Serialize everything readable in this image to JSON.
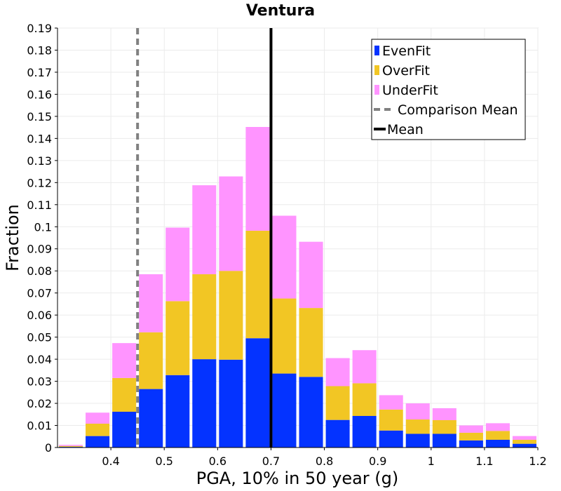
{
  "chart_data": {
    "type": "bar",
    "stacked": true,
    "title": "Ventura",
    "xlabel": "PGA, 10% in 50 year (g)",
    "ylabel": "Fraction",
    "xlim": [
      0.3,
      1.2
    ],
    "ylim": [
      0,
      0.19
    ],
    "bin_width": 0.05,
    "x": [
      0.325,
      0.375,
      0.425,
      0.475,
      0.525,
      0.575,
      0.625,
      0.675,
      0.725,
      0.775,
      0.825,
      0.875,
      0.925,
      0.975,
      1.025,
      1.075,
      1.125,
      1.175
    ],
    "series": [
      {
        "name": "EvenFit",
        "color": "#0433ff",
        "values": [
          0.0003,
          0.0052,
          0.0162,
          0.0265,
          0.0328,
          0.04,
          0.0398,
          0.0495,
          0.0335,
          0.032,
          0.0125,
          0.0143,
          0.0077,
          0.0062,
          0.0062,
          0.0032,
          0.0035,
          0.0017
        ]
      },
      {
        "name": "OverFit",
        "color": "#f2c624",
        "values": [
          0.0004,
          0.0056,
          0.0153,
          0.0257,
          0.0335,
          0.0385,
          0.0402,
          0.0487,
          0.034,
          0.0312,
          0.0153,
          0.0148,
          0.0095,
          0.0065,
          0.0062,
          0.0035,
          0.004,
          0.0018
        ]
      },
      {
        "name": "UnderFit",
        "color": "#ff94ff",
        "values": [
          0.0005,
          0.005,
          0.0158,
          0.0263,
          0.0333,
          0.0403,
          0.0428,
          0.047,
          0.0375,
          0.03,
          0.0127,
          0.015,
          0.0065,
          0.0073,
          0.0054,
          0.0033,
          0.0035,
          0.0017
        ]
      }
    ],
    "reference_lines": [
      {
        "name": "Comparison Mean",
        "x": 0.45,
        "color": "#808080",
        "style": "dashed"
      },
      {
        "name": "Mean",
        "x": 0.7,
        "color": "#000000",
        "style": "solid"
      }
    ],
    "x_ticks": [
      "0.4",
      "0.5",
      "0.6",
      "0.7",
      "0.8",
      "0.9",
      "1",
      "1.1",
      "1.2"
    ],
    "y_ticks": [
      "0",
      "0.01",
      "0.02",
      "0.03",
      "0.04",
      "0.05",
      "0.06",
      "0.07",
      "0.08",
      "0.09",
      "0.1",
      "0.11",
      "0.12",
      "0.13",
      "0.14",
      "0.15",
      "0.16",
      "0.17",
      "0.18",
      "0.19"
    ],
    "grid": true,
    "legend_position": "top-right",
    "legend": [
      "EvenFit",
      "OverFit",
      "UnderFit",
      "Comparison Mean",
      "Mean"
    ]
  }
}
